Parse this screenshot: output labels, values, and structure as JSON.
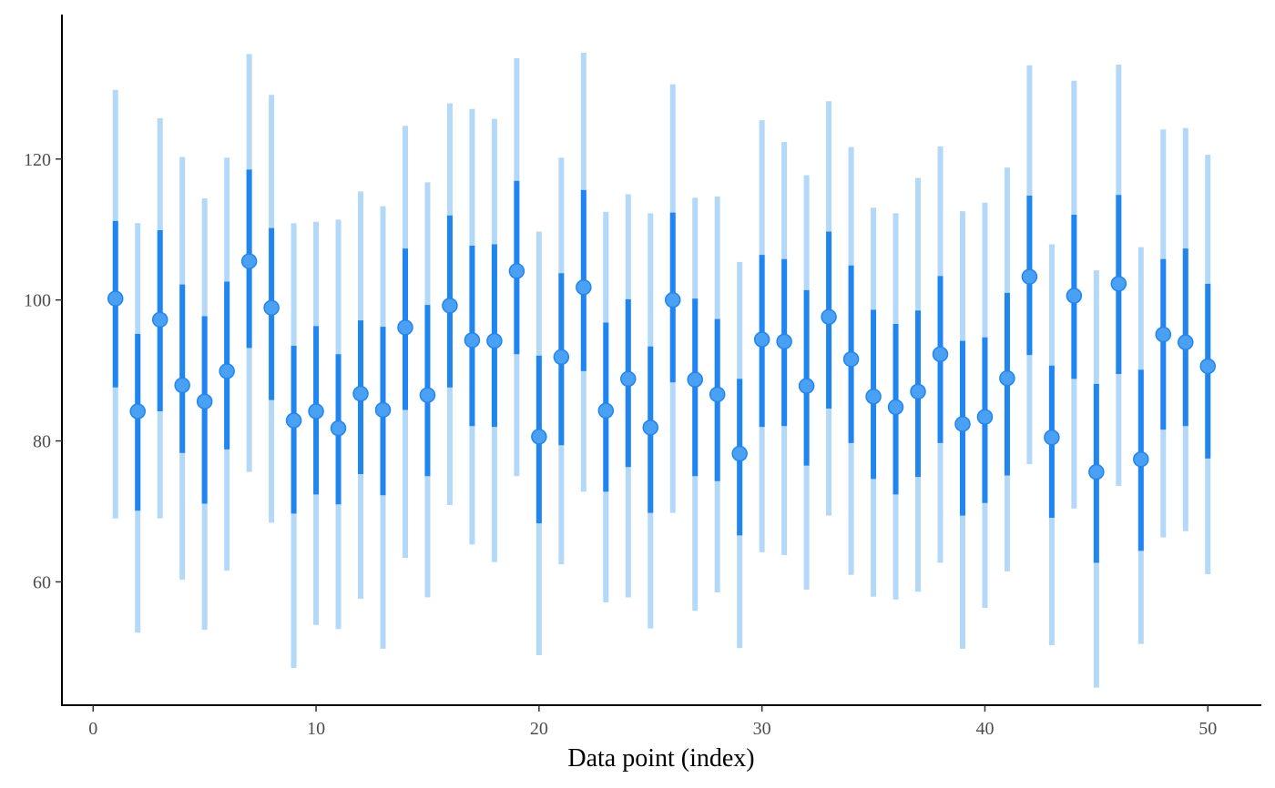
{
  "chart_data": {
    "type": "pointinterval",
    "xlabel": "Data point (index)",
    "ylabel": "",
    "xlim": [
      -1.4,
      52.4
    ],
    "ylim": [
      42.5,
      140.5
    ],
    "x_ticks": [
      0,
      10,
      20,
      30,
      40,
      50
    ],
    "x_tick_labels": [
      "0",
      "10",
      "20",
      "30",
      "40",
      "50"
    ],
    "y_ticks": [
      60,
      80,
      100,
      120
    ],
    "y_tick_labels": [
      "60",
      "80",
      "100",
      "120"
    ],
    "grid": false,
    "colors": {
      "outer_interval": "#b3d8f8",
      "inner_interval": "#2185f0",
      "point_fill": "#4aa0f2",
      "point_stroke": "#2185f0"
    },
    "x": [
      1,
      2,
      3,
      4,
      5,
      6,
      7,
      8,
      9,
      10,
      11,
      12,
      13,
      14,
      15,
      16,
      17,
      18,
      19,
      20,
      21,
      22,
      23,
      24,
      25,
      26,
      27,
      28,
      29,
      30,
      31,
      32,
      33,
      34,
      35,
      36,
      37,
      38,
      39,
      40,
      41,
      42,
      43,
      44,
      45,
      46,
      47,
      48,
      49,
      50
    ],
    "point": [
      100.2,
      84.2,
      97.2,
      87.9,
      85.6,
      89.9,
      105.5,
      98.9,
      82.9,
      84.2,
      81.8,
      86.7,
      84.4,
      96.1,
      86.5,
      99.2,
      94.3,
      94.2,
      104.1,
      80.6,
      91.9,
      101.8,
      84.3,
      88.8,
      81.9,
      100.0,
      88.7,
      86.6,
      78.2,
      94.4,
      94.1,
      87.8,
      97.6,
      91.6,
      86.3,
      84.8,
      87.0,
      92.3,
      82.4,
      83.4,
      88.9,
      103.3,
      80.5,
      100.6,
      75.6,
      102.3,
      77.4,
      95.1,
      94.0,
      90.6
    ],
    "inner_low": [
      87.6,
      70.1,
      84.2,
      78.3,
      71.1,
      78.8,
      93.2,
      85.8,
      69.7,
      72.4,
      71.0,
      75.3,
      72.3,
      84.4,
      75.0,
      87.6,
      82.1,
      82.0,
      92.3,
      68.3,
      79.4,
      89.9,
      72.8,
      76.3,
      69.8,
      88.3,
      75.0,
      74.3,
      66.6,
      82.0,
      82.1,
      76.5,
      84.6,
      79.7,
      74.6,
      72.4,
      74.9,
      79.7,
      69.4,
      71.2,
      75.1,
      92.2,
      69.1,
      88.8,
      62.7,
      89.5,
      64.4,
      81.6,
      82.1,
      77.5
    ],
    "inner_high": [
      111.2,
      95.2,
      109.9,
      102.2,
      97.7,
      102.6,
      118.5,
      110.2,
      93.5,
      96.3,
      92.3,
      97.1,
      96.2,
      107.3,
      99.3,
      112.0,
      107.7,
      107.9,
      116.9,
      92.1,
      103.8,
      115.6,
      96.8,
      100.1,
      93.4,
      112.4,
      100.2,
      97.3,
      88.8,
      106.4,
      105.8,
      101.4,
      109.7,
      104.9,
      98.6,
      96.6,
      98.5,
      103.4,
      94.2,
      94.7,
      101.0,
      114.8,
      90.7,
      112.1,
      88.1,
      114.9,
      90.1,
      105.8,
      107.3,
      102.3
    ],
    "outer_low": [
      69.0,
      52.8,
      69.0,
      60.3,
      53.2,
      61.6,
      75.6,
      68.4,
      47.8,
      53.9,
      53.3,
      57.6,
      50.5,
      63.4,
      57.8,
      70.9,
      65.3,
      62.8,
      75.0,
      49.6,
      62.5,
      72.8,
      57.1,
      57.8,
      53.4,
      69.8,
      55.9,
      58.5,
      50.6,
      64.2,
      63.8,
      58.9,
      69.4,
      61.0,
      57.9,
      57.5,
      58.6,
      62.7,
      50.5,
      56.3,
      61.5,
      76.7,
      51.0,
      70.4,
      45.0,
      73.6,
      51.2,
      66.3,
      67.2,
      61.1
    ],
    "outer_high": [
      129.8,
      110.9,
      125.8,
      120.3,
      114.4,
      120.2,
      134.9,
      129.1,
      110.9,
      111.1,
      111.4,
      115.4,
      113.3,
      124.7,
      116.7,
      127.9,
      127.1,
      125.7,
      134.3,
      109.7,
      120.2,
      135.1,
      112.5,
      115.0,
      112.3,
      130.6,
      114.5,
      114.7,
      105.4,
      125.5,
      122.4,
      117.7,
      128.2,
      121.7,
      113.1,
      112.3,
      117.3,
      121.8,
      112.6,
      113.8,
      118.8,
      133.3,
      107.9,
      131.1,
      104.2,
      133.4,
      107.5,
      124.2,
      124.4,
      120.6
    ]
  }
}
